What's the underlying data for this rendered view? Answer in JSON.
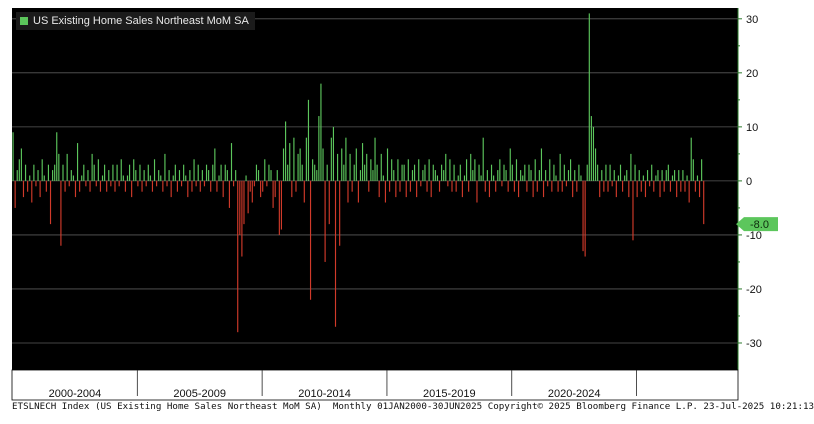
{
  "legend": {
    "label": "US Existing Home Sales Northeast MoM SA",
    "color": "#5cc65c"
  },
  "last_value_label": "-8.0",
  "footer": "ETSLNECH Index (US Existing Home Sales Northeast MoM SA)  Monthly 01JAN2000-30JUN2025 Copyright© 2025 Bloomberg Finance L.P. 23-Jul-2025 10:21:13",
  "colors": {
    "positive": "#5cc65c",
    "negative": "#d13a2a",
    "background": "#000000",
    "grid": "#5a5a5a"
  },
  "chart_data": {
    "type": "bar",
    "title": "",
    "xlabel": "",
    "ylabel": "",
    "ylim": [
      -35,
      32
    ],
    "yticks": [
      30,
      20,
      10,
      0,
      -10,
      -20,
      -30
    ],
    "grid": true,
    "legend_position": "top-left",
    "period_labels": [
      "2000-2004",
      "2005-2009",
      "2010-2014",
      "2015-2019",
      "2020-2024"
    ],
    "start": "2000-01",
    "end": "2025-06",
    "series": [
      {
        "name": "US Existing Home Sales Northeast MoM SA",
        "values": [
          9,
          -5,
          2,
          4,
          6,
          -3,
          3,
          -2,
          1,
          -4,
          3,
          -1,
          2,
          -3,
          4,
          1,
          -2,
          3,
          -8,
          2,
          3,
          9,
          5,
          -12,
          3,
          -2,
          5,
          -1,
          2,
          1,
          -3,
          7,
          -2,
          1,
          3,
          -1,
          2,
          -2,
          5,
          3,
          -1,
          4,
          -2,
          1,
          3,
          -2,
          2,
          -1,
          3,
          -2,
          3,
          -1,
          4,
          1,
          -2,
          1,
          3,
          -3,
          4,
          2,
          -1,
          3,
          -2,
          2,
          -1,
          3,
          1,
          -2,
          4,
          -1,
          2,
          1,
          -2,
          5,
          -1,
          2,
          -3,
          1,
          3,
          -2,
          2,
          -1,
          3,
          1,
          -3,
          2,
          -2,
          4,
          -1,
          3,
          -2,
          2,
          -1,
          3,
          2,
          -2,
          3,
          6,
          -2,
          1,
          3,
          -3,
          3,
          2,
          -5,
          7,
          -1,
          2,
          -28,
          -10,
          -14,
          -8,
          1,
          -6,
          -2,
          -4,
          -1,
          3,
          2,
          -3,
          -2,
          4,
          -1,
          3,
          2,
          -5,
          -3,
          2,
          -10,
          -9,
          6,
          11,
          3,
          7,
          -3,
          8,
          -2,
          5,
          6,
          3,
          -4,
          8,
          15,
          -22,
          4,
          3,
          2,
          12,
          18,
          6,
          -15,
          3,
          -8,
          8,
          10,
          -27,
          5,
          -12,
          6,
          3,
          8,
          -4,
          5,
          -2,
          3,
          6,
          -4,
          2,
          7,
          3,
          5,
          -2,
          4,
          2,
          8,
          3,
          -3,
          5,
          1,
          -4,
          6,
          -2,
          4,
          2,
          -3,
          4,
          -2,
          3,
          3,
          -3,
          4,
          -2,
          2,
          3,
          -3,
          4,
          -1,
          2,
          3,
          -2,
          4,
          -3,
          3,
          2,
          1,
          -2,
          3,
          2,
          5,
          -1,
          4,
          -2,
          3,
          -2,
          1,
          3,
          -3,
          1,
          4,
          -2,
          5,
          2,
          4,
          -4,
          3,
          1,
          8,
          -2,
          2,
          -3,
          3,
          1,
          -2,
          2,
          4,
          -1,
          3,
          2,
          -2,
          6,
          3,
          -2,
          4,
          -3,
          2,
          1,
          3,
          -2,
          3,
          2,
          -3,
          4,
          -2,
          2,
          6,
          -3,
          2,
          -1,
          4,
          -2,
          3,
          1,
          -2,
          5,
          -2,
          3,
          -1,
          2,
          4,
          -3,
          2,
          -2,
          3,
          1,
          -13,
          -14,
          3,
          31,
          12,
          10,
          6,
          3,
          -3,
          2,
          -2,
          3,
          -2,
          3,
          -1,
          2,
          -3,
          1,
          3,
          -2,
          1,
          2,
          -3,
          5,
          -11,
          3,
          -3,
          2,
          -2,
          1,
          -3,
          2,
          -1,
          3,
          -2,
          1,
          2,
          -3,
          2,
          -2,
          2,
          3,
          -2,
          1,
          2,
          -3,
          2,
          -2,
          2,
          -2,
          1,
          -4,
          8,
          4,
          -2,
          1,
          -3,
          4,
          -8
        ]
      }
    ]
  }
}
